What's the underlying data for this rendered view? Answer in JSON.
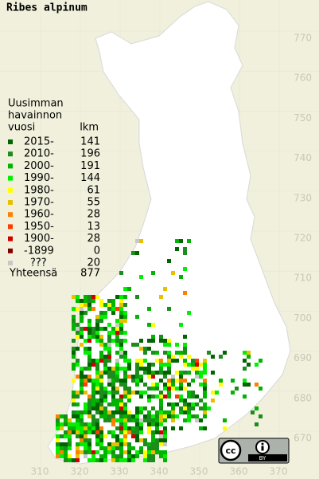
{
  "title": "Ribes alpinum",
  "legend": {
    "heading": [
      "Uusimman",
      "havainnon",
      "vuosi"
    ],
    "count_heading": "lkm",
    "entries": [
      {
        "label": "2015-",
        "count": 141,
        "color": "#006400"
      },
      {
        "label": "2010-",
        "count": 196,
        "color": "#1c8c1c"
      },
      {
        "label": "2000-",
        "count": 191,
        "color": "#00b400"
      },
      {
        "label": "1990-",
        "count": 144,
        "color": "#00f000"
      },
      {
        "label": "1980-",
        "count": 61,
        "color": "#ffff00"
      },
      {
        "label": "1970-",
        "count": 55,
        "color": "#e8c000"
      },
      {
        "label": "1960-",
        "count": 28,
        "color": "#ff8000"
      },
      {
        "label": "1950-",
        "count": 13,
        "color": "#ff3c00"
      },
      {
        "label": "1900-",
        "count": 28,
        "color": "#d00000"
      },
      {
        "label": "-1899",
        "count": 0,
        "color": "#800000"
      },
      {
        "label": "???",
        "count": 20,
        "color": "#c8c8c8"
      }
    ],
    "total_label": "Yhteensä",
    "total": 877
  },
  "map_axes": {
    "xticks": [
      310,
      320,
      330,
      340,
      350,
      360,
      370
    ],
    "yticks": [
      670,
      680,
      690,
      700,
      710,
      720,
      730,
      740,
      750,
      760,
      770
    ]
  },
  "license": {
    "cc": "cc",
    "by": "BY"
  }
}
